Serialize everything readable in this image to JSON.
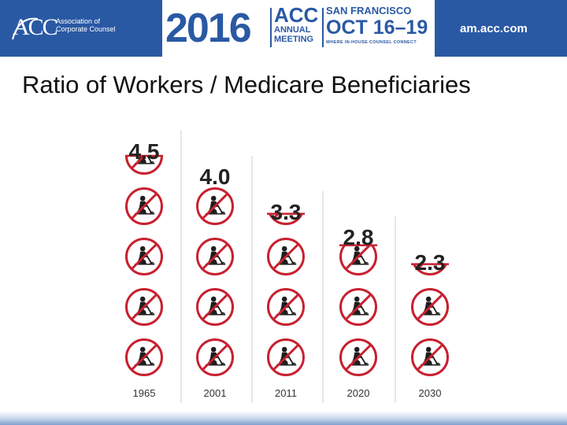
{
  "banner": {
    "org_mark": "ACC",
    "org_name_line1": "Association of",
    "org_name_line2": "Corporate Counsel",
    "year": "2016",
    "acc": "ACC",
    "annual": "ANNUAL",
    "meeting": "MEETING",
    "city": "SAN FRANCISCO",
    "dates": "OCT 16–19",
    "tagline": "WHERE IN-HOUSE COUNSEL CONNECT",
    "site": "am.acc.com",
    "bg_color": "#2a59a4"
  },
  "slide": {
    "title": "Ratio of Workers / Medicare Beneficiaries"
  },
  "chart_data": {
    "type": "bar",
    "categories": [
      "1965",
      "2001",
      "2011",
      "2020",
      "2030"
    ],
    "values": [
      4.5,
      4.0,
      3.3,
      2.8,
      2.3
    ],
    "value_labels": [
      "4.5",
      "4.0",
      "3.3",
      "2.8",
      "2.3"
    ],
    "icon": "worker-shoveling-icon",
    "marker_color": "#c8202f",
    "title": "",
    "xlabel": "",
    "ylabel": ""
  }
}
